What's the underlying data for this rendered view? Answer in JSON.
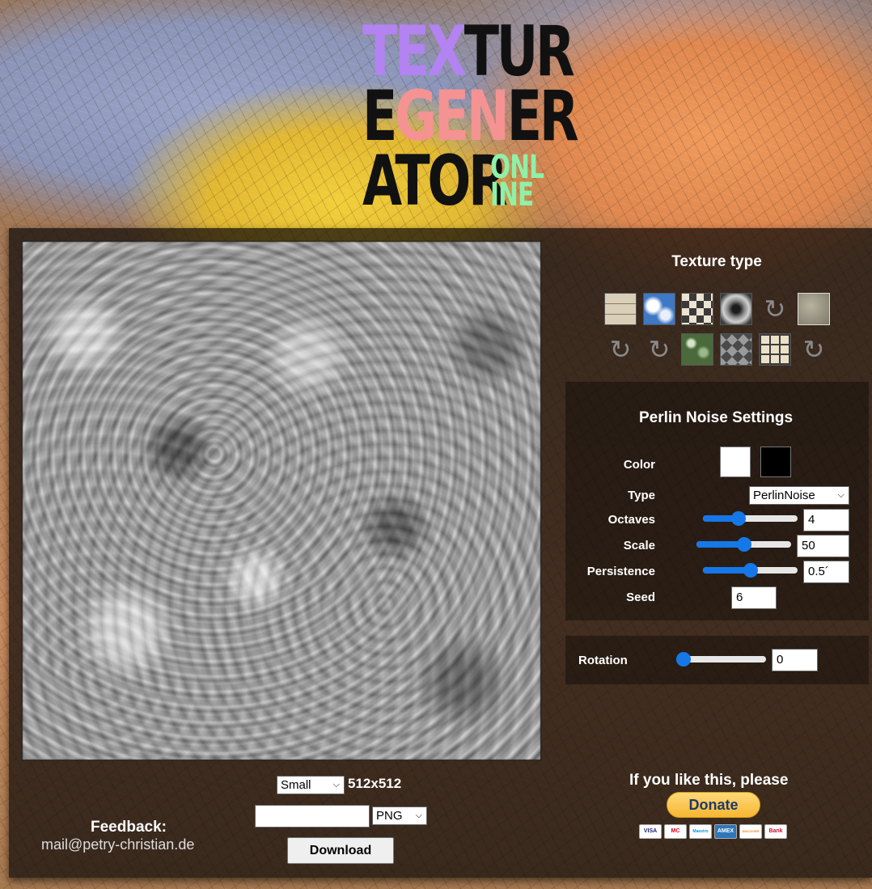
{
  "logo": {
    "row1_a": "TEX",
    "row1_b": "TUR",
    "row2_a": "E",
    "row2_b": "GEN",
    "row2_c": "ER",
    "row3_a": "ATOR",
    "small_1": "ONL",
    "small_2": "INE",
    "colors": {
      "purple": "#b383f2",
      "black": "#111111",
      "pink": "#f59393",
      "green": "#8ff0a8"
    }
  },
  "texture_type": {
    "title": "Texture type",
    "thumbnails": [
      {
        "name": "bricks-texture-icon"
      },
      {
        "name": "clouds-texture-icon"
      },
      {
        "name": "checkerboard-texture-icon"
      },
      {
        "name": "radial-gradient-texture-icon"
      },
      {
        "name": "loading-icon"
      },
      {
        "name": "perlin-noise-texture-icon"
      },
      {
        "name": "loading-icon"
      },
      {
        "name": "loading-icon"
      },
      {
        "name": "leaves-texture-icon"
      },
      {
        "name": "diamond-pattern-texture-icon"
      },
      {
        "name": "tiles-texture-icon"
      },
      {
        "name": "loading-icon"
      }
    ]
  },
  "perlin": {
    "title": "Perlin Noise Settings",
    "color_label": "Color",
    "colors": [
      "#ffffff",
      "#000000"
    ],
    "type_label": "Type",
    "type_value": "PerlinNoise",
    "octaves_label": "Octaves",
    "octaves_value": "4",
    "octaves_level": 0.35,
    "scale_label": "Scale",
    "scale_value": "50",
    "scale_level": 0.5,
    "persistence_label": "Persistence",
    "persistence_value": "0.5´",
    "persistence_level": 0.5,
    "seed_label": "Seed",
    "seed_value": "6"
  },
  "rotation": {
    "label": "Rotation",
    "value": "0",
    "level": 0.0
  },
  "export": {
    "size_value": "Small",
    "size_text": "512x512",
    "filename_value": "",
    "format_value": "PNG",
    "download_label": "Download"
  },
  "feedback": {
    "label": "Feedback:",
    "email": "mail@petry-christian.de"
  },
  "donate": {
    "label": "If you like this, please",
    "button_label": "Donate",
    "cards": [
      "VISA",
      "MC",
      "Maestro",
      "AMEX",
      "DISCOVER",
      "Bank"
    ]
  }
}
